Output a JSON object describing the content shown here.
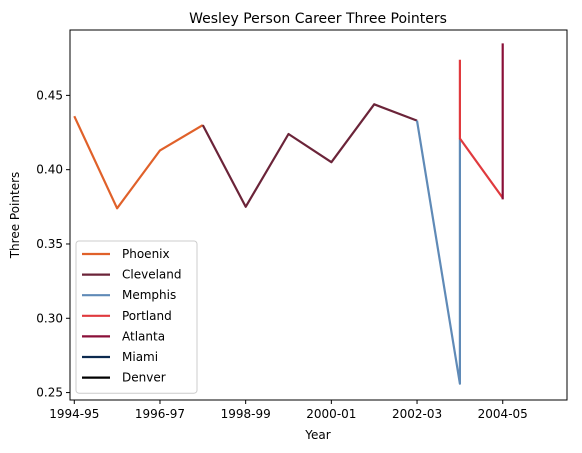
{
  "chart_data": {
    "type": "line",
    "title": "Wesley Person Career Three Pointers",
    "xlabel": "Year",
    "ylabel": "Three Pointers",
    "x_ticks": [
      "1994-95",
      "1996-97",
      "1998-99",
      "2000-01",
      "2002-03",
      "2004-05"
    ],
    "y_ticks": [
      "0.25",
      "0.30",
      "0.35",
      "0.40",
      "0.45"
    ],
    "xlim": [
      1993.9,
      2005.5
    ],
    "ylim": [
      0.245,
      0.494
    ],
    "grid": false,
    "legend_position": "lower-left",
    "series": [
      {
        "name": "Phoenix",
        "color": "#e0612a",
        "points": [
          [
            1994,
            0.436
          ],
          [
            1995,
            0.374
          ],
          [
            1996,
            0.413
          ],
          [
            1997,
            0.43
          ]
        ]
      },
      {
        "name": "Cleveland",
        "color": "#6b2439",
        "points": [
          [
            1997,
            0.43
          ],
          [
            1998,
            0.375
          ],
          [
            1999,
            0.424
          ],
          [
            2000,
            0.405
          ],
          [
            2001,
            0.444
          ],
          [
            2002,
            0.433
          ]
        ]
      },
      {
        "name": "Memphis",
        "color": "#5f8ab7",
        "points": [
          [
            2002,
            0.433
          ],
          [
            2003,
            0.256
          ],
          [
            2003,
            0.421
          ]
        ]
      },
      {
        "name": "Portland",
        "color": "#e03a3e",
        "points": [
          [
            2003,
            0.474
          ],
          [
            2003,
            0.421
          ],
          [
            2004,
            0.381
          ]
        ]
      },
      {
        "name": "Atlanta",
        "color": "#8a0f38",
        "points": [
          [
            2004,
            0.485
          ],
          [
            2004,
            0.38
          ]
        ]
      },
      {
        "name": "Miami",
        "color": "#0c2a4f",
        "points": []
      },
      {
        "name": "Denver",
        "color": "#000000",
        "points": []
      }
    ]
  }
}
